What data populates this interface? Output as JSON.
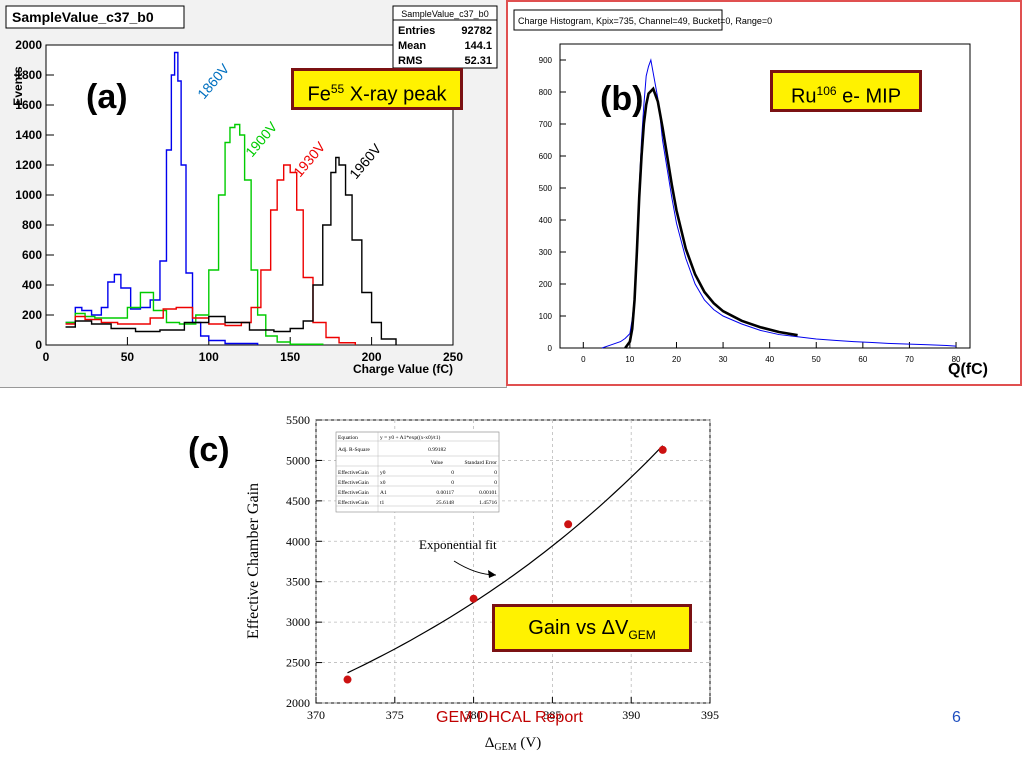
{
  "panel_a": {
    "label": "(a)",
    "annotation": "Fe",
    "annotation_sup": "55",
    "annotation_rest": " X-ray peak",
    "stats": {
      "title": "SampleValue_c37_b0",
      "rows": [
        {
          "k": "Entries",
          "v": "92782"
        },
        {
          "k": "Mean",
          "v": "144.1"
        },
        {
          "k": "RMS",
          "v": "52.31"
        }
      ]
    }
  },
  "panel_b": {
    "label": "(b)",
    "annotation": "Ru",
    "annotation_sup": "106",
    "annotation_rest": " e- MIP",
    "x_unit_label": "Q(fC)"
  },
  "panel_c": {
    "label": "(c)",
    "fit_label": "Exponential fit",
    "annotation": "Gain vs ΔV",
    "annotation_sub": "GEM",
    "fit_table": {
      "equation_label": "Equation",
      "equation": "y = y0 + A1*exp((x-x0)/t1)",
      "adjr_label": "Adj. R-Square",
      "adjr": "0.99182",
      "col_value": "Value",
      "col_err": "Standard Error",
      "rows": [
        {
          "name": "EffectiveGain",
          "p": "y0",
          "val": "0",
          "err": "0"
        },
        {
          "name": "EffectiveGain",
          "p": "x0",
          "val": "0",
          "err": "0"
        },
        {
          "name": "EffectiveGain",
          "p": "A1",
          "val": "0.00117",
          "err": "0.00101"
        },
        {
          "name": "EffectiveGain",
          "p": "t1",
          "val": "25.6148",
          "err": "1.45716"
        }
      ]
    }
  },
  "footer": {
    "report": "GEM DHCAL Report",
    "page": "6"
  },
  "colors": {
    "annotation_bg": "#fff200",
    "annotation_border": "#7b1113",
    "panel_b_border": "#e05050",
    "blue": "#0000ee",
    "green": "#00cc00",
    "red": "#ee0000",
    "black": "#000000",
    "dot": "#cc1111",
    "report": "#c00000",
    "page": "#1f4fbf"
  },
  "chart_data": [
    {
      "type": "line",
      "title": "SampleValue_c37_b0",
      "xlabel": "Charge Value (fC)",
      "ylabel": "Events",
      "xlim": [
        0,
        250
      ],
      "ylim": [
        0,
        2000
      ],
      "xticks": [
        0,
        50,
        100,
        150,
        200,
        250
      ],
      "yticks": [
        0,
        200,
        400,
        600,
        800,
        1000,
        1200,
        1400,
        1600,
        1800,
        2000
      ],
      "series": [
        {
          "name": "1860V",
          "color": "blue",
          "x": [
            12,
            18,
            22,
            28,
            34,
            38,
            42,
            46,
            52,
            58,
            64,
            70,
            74,
            77,
            79,
            81,
            83,
            86,
            90,
            95,
            100,
            110,
            130
          ],
          "y": [
            150,
            250,
            230,
            200,
            250,
            420,
            470,
            380,
            240,
            250,
            300,
            560,
            1300,
            1800,
            1950,
            1760,
            1200,
            480,
            150,
            60,
            30,
            10,
            0
          ]
        },
        {
          "name": "1900V",
          "color": "green",
          "x": [
            12,
            18,
            24,
            30,
            40,
            50,
            58,
            66,
            74,
            82,
            92,
            100,
            106,
            110,
            113,
            116,
            119,
            122,
            126,
            130,
            135,
            142,
            150,
            170
          ],
          "y": [
            150,
            210,
            190,
            180,
            180,
            250,
            350,
            230,
            150,
            140,
            200,
            500,
            1000,
            1350,
            1450,
            1470,
            1400,
            1100,
            500,
            200,
            60,
            20,
            5,
            0
          ]
        },
        {
          "name": "1930V",
          "color": "red",
          "x": [
            12,
            18,
            24,
            34,
            44,
            54,
            64,
            72,
            80,
            90,
            100,
            110,
            120,
            126,
            132,
            138,
            142,
            146,
            150,
            154,
            158,
            164,
            172,
            180,
            190
          ],
          "y": [
            140,
            190,
            170,
            150,
            140,
            140,
            180,
            240,
            250,
            180,
            140,
            130,
            150,
            250,
            500,
            900,
            1100,
            1200,
            1150,
            900,
            450,
            150,
            50,
            15,
            0
          ]
        },
        {
          "name": "1960V",
          "color": "black",
          "x": [
            12,
            18,
            28,
            40,
            55,
            70,
            85,
            100,
            110,
            125,
            140,
            150,
            158,
            164,
            170,
            175,
            178,
            180,
            184,
            188,
            194,
            200,
            206,
            215
          ],
          "y": [
            120,
            160,
            140,
            110,
            90,
            100,
            150,
            190,
            150,
            100,
            90,
            110,
            160,
            400,
            800,
            1150,
            1250,
            1200,
            1000,
            700,
            350,
            150,
            40,
            0
          ]
        }
      ]
    },
    {
      "type": "line",
      "title": "Charge Histogram, Kpix=735, Channel=49, Bucket=0, Range=0",
      "xlabel": "Q(fC)",
      "ylabel": "",
      "xlim": [
        -5,
        83
      ],
      "ylim": [
        0,
        950
      ],
      "xticks": [
        0,
        10,
        20,
        30,
        40,
        50,
        60,
        70,
        80
      ],
      "yticks": [
        0,
        100,
        200,
        300,
        400,
        500,
        600,
        700,
        800,
        900
      ],
      "series": [
        {
          "name": "data",
          "color": "blue",
          "x": [
            4,
            6,
            8,
            9,
            10,
            10.5,
            11,
            11.5,
            12,
            12.5,
            13,
            13.5,
            14,
            14.5,
            15,
            15.5,
            16,
            16.5,
            17,
            18,
            19,
            20,
            22,
            24,
            26,
            28,
            30,
            34,
            38,
            42,
            46,
            50,
            54,
            58,
            62,
            66,
            70,
            74,
            78,
            80
          ],
          "y": [
            0,
            10,
            20,
            30,
            45,
            90,
            160,
            300,
            500,
            650,
            760,
            850,
            880,
            900,
            860,
            820,
            780,
            720,
            650,
            560,
            470,
            390,
            280,
            200,
            150,
            120,
            100,
            75,
            55,
            42,
            35,
            28,
            24,
            20,
            17,
            14,
            12,
            10,
            8,
            6
          ]
        },
        {
          "name": "fit",
          "color": "black",
          "x": [
            9,
            10,
            10.5,
            11,
            11.5,
            12,
            12.5,
            13,
            13.5,
            14,
            15,
            16,
            17,
            18,
            19,
            20,
            22,
            24,
            26,
            28,
            30,
            34,
            38,
            42,
            46
          ],
          "y": [
            0,
            20,
            60,
            150,
            300,
            470,
            600,
            700,
            760,
            795,
            810,
            770,
            690,
            600,
            510,
            430,
            310,
            230,
            175,
            140,
            115,
            85,
            65,
            50,
            40
          ]
        }
      ]
    },
    {
      "type": "scatter",
      "title": "",
      "xlabel": "ΔGEM (V)",
      "ylabel": "Effective Chamber Gain",
      "xlim": [
        370,
        395
      ],
      "ylim": [
        2000,
        5500
      ],
      "xticks": [
        370,
        375,
        380,
        385,
        390,
        395
      ],
      "yticks": [
        2000,
        2500,
        3000,
        3500,
        4000,
        4500,
        5000,
        5500
      ],
      "points": [
        {
          "x": 372,
          "y": 2290
        },
        {
          "x": 380,
          "y": 3290
        },
        {
          "x": 386,
          "y": 4210
        },
        {
          "x": 392,
          "y": 5130
        }
      ],
      "fit": {
        "name": "Exponential fit",
        "A1": 0.00117,
        "t1": 25.6148,
        "x_range": [
          372,
          392
        ]
      }
    }
  ]
}
